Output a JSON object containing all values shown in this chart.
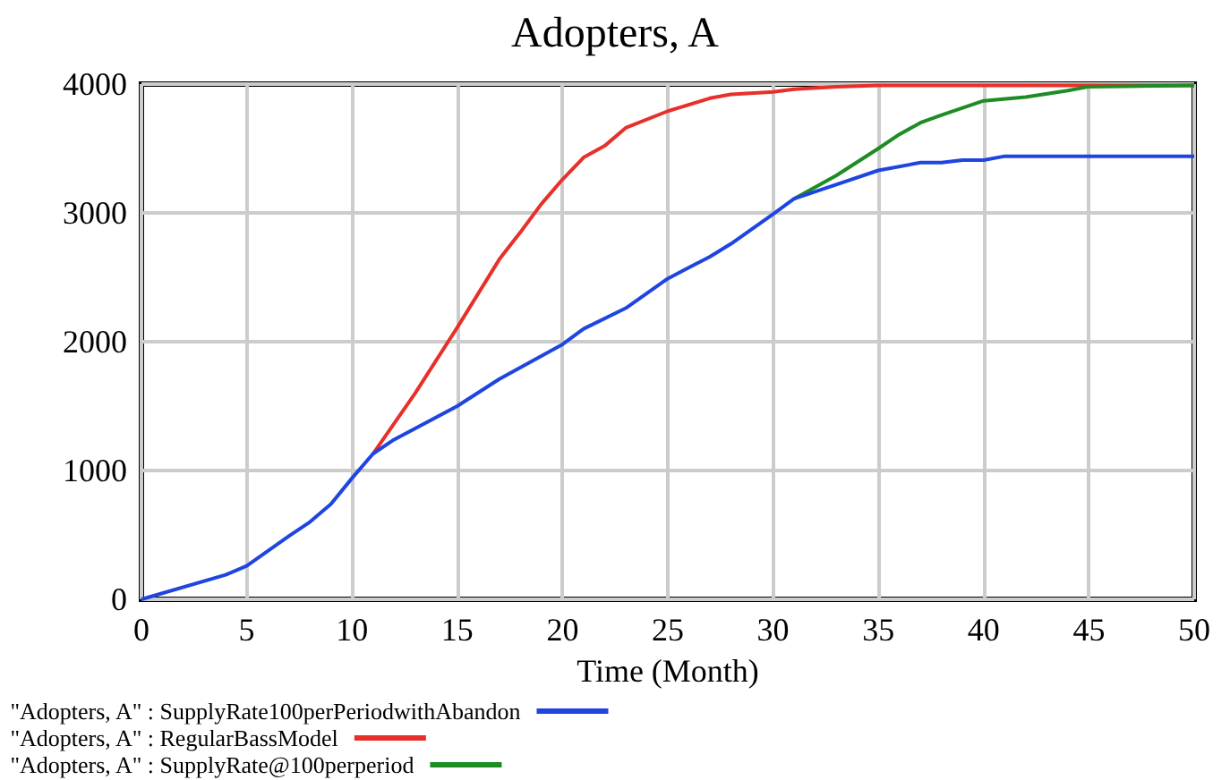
{
  "chart_data": {
    "type": "line",
    "title": "Adopters, A",
    "xlabel": "Time (Month)",
    "xlim": [
      0,
      50
    ],
    "xticks": [
      0,
      5,
      10,
      15,
      20,
      25,
      30,
      35,
      40,
      45,
      50
    ],
    "ylim": [
      0,
      4000
    ],
    "yticks": [
      0,
      1000,
      2000,
      3000,
      4000
    ],
    "grid": true,
    "legend": "bottom left",
    "marker": "none",
    "line_style": "solid",
    "series": [
      {
        "name": "\"Adopters, A\" : SupplyRate100perPeriodwithAbandon",
        "color": "#1f45e0",
        "x": [
          0,
          4,
          5,
          7,
          8,
          9,
          10,
          11,
          12,
          15,
          17,
          20,
          21,
          23,
          25,
          27,
          28,
          30,
          31,
          33,
          35,
          37,
          38,
          39,
          40,
          41,
          50
        ],
        "values": [
          0,
          190,
          260,
          490,
          600,
          740,
          940,
          1130,
          1240,
          1500,
          1710,
          1980,
          2100,
          2260,
          2490,
          2660,
          2760,
          2990,
          3110,
          3220,
          3330,
          3390,
          3390,
          3410,
          3410,
          3440,
          3440
        ]
      },
      {
        "name": "\"Adopters, A\" : RegularBassModel",
        "color": "#e8302a",
        "x": [
          11,
          13,
          15,
          17,
          18,
          19,
          20,
          21,
          22,
          23,
          25,
          27,
          28,
          30,
          31,
          33,
          35,
          50
        ],
        "values": [
          1130,
          1600,
          2110,
          2640,
          2850,
          3070,
          3260,
          3430,
          3520,
          3660,
          3790,
          3890,
          3920,
          3940,
          3960,
          3980,
          3990,
          3990
        ]
      },
      {
        "name": "\"Adopters, A\" : SupplyRate@100perperiod",
        "color": "#1e8c24",
        "x": [
          31,
          33,
          35,
          36,
          37,
          38,
          40,
          42,
          44,
          45,
          50
        ],
        "values": [
          3110,
          3290,
          3500,
          3610,
          3700,
          3760,
          3870,
          3900,
          3950,
          3980,
          3990
        ]
      }
    ]
  }
}
